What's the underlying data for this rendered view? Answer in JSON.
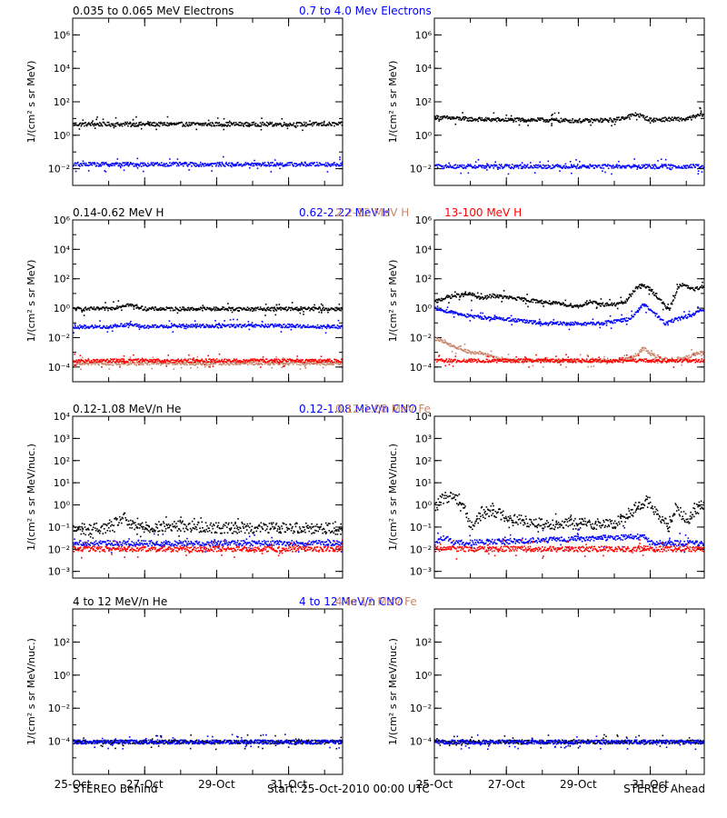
{
  "chart_data": [
    {
      "type": "scatter",
      "row": 0,
      "col": 0,
      "title_series": [
        "0.035 to 0.065 MeV Electrons",
        "0.7 to 4.0 Mev Electrons"
      ],
      "ylabel": "1/(cm² s sr MeV)",
      "yscale": "log",
      "ylim": [
        0.001,
        10000000
      ],
      "yticks": [
        {
          "v": 0.01,
          "label": "10⁻²"
        },
        {
          "v": 1,
          "label": "10⁰"
        },
        {
          "v": 100,
          "label": "10²"
        },
        {
          "v": 10000,
          "label": "10⁴"
        },
        {
          "v": 1000000,
          "label": "10⁶"
        }
      ],
      "xlim": [
        "2010-10-25",
        "2010-11-01T12:00"
      ],
      "series": [
        {
          "name": "0.035 to 0.065 MeV Electrons",
          "color": "#000000",
          "x": [
            0,
            1,
            2,
            3,
            4,
            5,
            6,
            7
          ],
          "values": [
            5,
            5,
            5,
            5,
            5,
            5,
            5,
            5
          ]
        },
        {
          "name": "0.7 to 4.0 Mev Electrons",
          "color": "#0000ff",
          "x": [
            0,
            1,
            2,
            3,
            4,
            5,
            6,
            7
          ],
          "values": [
            0.02,
            0.02,
            0.02,
            0.02,
            0.02,
            0.02,
            0.02,
            0.02
          ]
        }
      ]
    },
    {
      "type": "scatter",
      "row": 0,
      "col": 1,
      "title_series": [],
      "ylabel": "1/(cm² s sr MeV)",
      "yscale": "log",
      "ylim": [
        0.001,
        10000000
      ],
      "yticks": [
        {
          "v": 0.01,
          "label": "10⁻²"
        },
        {
          "v": 1,
          "label": "10⁰"
        },
        {
          "v": 100,
          "label": "10²"
        },
        {
          "v": 10000,
          "label": "10⁴"
        },
        {
          "v": 1000000,
          "label": "10⁶"
        }
      ],
      "xlim": [
        "2010-10-25",
        "2010-11-01T12:00"
      ],
      "series": [
        {
          "name": "0.035 to 0.065 MeV Electrons",
          "color": "#000000",
          "x": [
            0,
            1,
            2,
            3,
            4,
            5,
            5.6,
            6,
            6.5,
            7,
            7.5
          ],
          "values": [
            13,
            10,
            9,
            9,
            8,
            9,
            20,
            9,
            10,
            10,
            22
          ]
        },
        {
          "name": "0.7 to 4.0 Mev Electrons",
          "color": "#0000ff",
          "x": [
            0,
            7.5
          ],
          "values": [
            0.015,
            0.015
          ]
        }
      ]
    },
    {
      "type": "scatter",
      "row": 1,
      "col": 0,
      "title_series": [
        "0.14-0.62 MeV H",
        "0.62-2.22 MeV H",
        "2.2-12 MeV H",
        "13-100 MeV H"
      ],
      "ylabel": "1/(cm² s sr MeV)",
      "yscale": "log",
      "ylim": [
        1e-05,
        1000000
      ],
      "yticks": [
        {
          "v": 0.0001,
          "label": "10⁻⁴"
        },
        {
          "v": 0.01,
          "label": "10⁻²"
        },
        {
          "v": 1,
          "label": "10⁰"
        },
        {
          "v": 100,
          "label": "10²"
        },
        {
          "v": 10000,
          "label": "10⁴"
        },
        {
          "v": 1000000,
          "label": "10⁶"
        }
      ],
      "xlim": [
        "2010-10-25",
        "2010-11-01T12:00"
      ],
      "series": [
        {
          "name": "0.14-0.62 MeV H",
          "color": "#000000",
          "x": [
            0,
            1,
            1.5,
            2,
            3,
            4,
            5,
            6,
            7,
            7.5
          ],
          "values": [
            1,
            1,
            2,
            1,
            1,
            1,
            1,
            1,
            1,
            1
          ]
        },
        {
          "name": "0.62-2.22 MeV H",
          "color": "#0000ff",
          "x": [
            0,
            1,
            1.5,
            2,
            3,
            4,
            5,
            6,
            7,
            7.5
          ],
          "values": [
            0.06,
            0.06,
            0.09,
            0.06,
            0.07,
            0.07,
            0.07,
            0.07,
            0.06,
            0.06
          ]
        },
        {
          "name": "2.2-12 MeV H",
          "color": "#c8866b",
          "x": [
            0,
            7.5
          ],
          "values": [
            0.0002,
            0.0002
          ]
        },
        {
          "name": "13-100 MeV H",
          "color": "#ff0000",
          "x": [
            0,
            7.5
          ],
          "values": [
            0.0003,
            0.0003
          ]
        }
      ]
    },
    {
      "type": "scatter",
      "row": 1,
      "col": 1,
      "title_series": [],
      "ylabel": "1/(cm² s sr MeV)",
      "yscale": "log",
      "ylim": [
        1e-05,
        1000000
      ],
      "yticks": [
        {
          "v": 0.0001,
          "label": "10⁻⁴"
        },
        {
          "v": 0.01,
          "label": "10⁻²"
        },
        {
          "v": 1,
          "label": "10⁰"
        },
        {
          "v": 100,
          "label": "10²"
        },
        {
          "v": 10000,
          "label": "10⁴"
        },
        {
          "v": 1000000,
          "label": "10⁶"
        }
      ],
      "xlim": [
        "2010-10-25",
        "2010-11-01T12:00"
      ],
      "series": [
        {
          "name": "0.14-0.62 MeV H",
          "color": "#000000",
          "x": [
            0,
            0.3,
            0.6,
            1,
            1.3,
            1.6,
            2,
            3,
            4,
            4.3,
            4.6,
            5,
            5.3,
            5.6,
            5.8,
            6.0,
            6.3,
            6.5,
            6.8,
            7.2,
            7.5
          ],
          "values": [
            3,
            6,
            8,
            10,
            5,
            8,
            6,
            3,
            1.5,
            3,
            2,
            2,
            3,
            30,
            40,
            20,
            3,
            0.8,
            50,
            20,
            40
          ]
        },
        {
          "name": "0.62-2.22 MeV H",
          "color": "#0000ff",
          "x": [
            0,
            0.5,
            1,
            2,
            3,
            4,
            4.6,
            5,
            5.4,
            5.8,
            6.1,
            6.4,
            6.7,
            7,
            7.5
          ],
          "values": [
            1,
            0.6,
            0.3,
            0.2,
            0.1,
            0.1,
            0.1,
            0.15,
            0.2,
            2,
            0.5,
            0.1,
            0.2,
            0.3,
            0.9
          ]
        },
        {
          "name": "2.2-12 MeV H",
          "color": "#c8866b",
          "x": [
            0,
            0.3,
            0.7,
            1,
            1.3,
            1.6,
            2.0,
            5.0,
            5.5,
            5.8,
            6.0,
            6.5,
            7.0,
            7.3,
            7.5
          ],
          "values": [
            0.01,
            0.005,
            0.002,
            0.001,
            0.001,
            0.0005,
            0.0003,
            0.0003,
            0.0005,
            0.002,
            0.0008,
            0.0003,
            0.0005,
            0.001,
            0.001
          ]
        },
        {
          "name": "13-100 MeV H",
          "color": "#ff0000",
          "x": [
            0,
            7.5
          ],
          "values": [
            0.0003,
            0.0003
          ]
        }
      ]
    },
    {
      "type": "scatter",
      "row": 2,
      "col": 0,
      "title_series": [
        "0.12-1.08 MeV/n He",
        "0.12-1.08 MeV/n CNO",
        "0.12-1.08 MeV Fe"
      ],
      "ylabel": "1/(cm² s sr MeV/nuc.)",
      "yscale": "log",
      "ylim": [
        0.0005,
        10000
      ],
      "yticks": [
        {
          "v": 0.001,
          "label": "10⁻³"
        },
        {
          "v": 0.01,
          "label": "10⁻²"
        },
        {
          "v": 0.1,
          "label": "10⁻¹"
        },
        {
          "v": 1,
          "label": "10⁰"
        },
        {
          "v": 10,
          "label": "10¹"
        },
        {
          "v": 100,
          "label": "10²"
        },
        {
          "v": 1000,
          "label": "10³"
        },
        {
          "v": 10000,
          "label": "10⁴"
        }
      ],
      "xlim": [
        "2010-10-25",
        "2010-11-01T12:00"
      ],
      "series": [
        {
          "name": "0.12-1.08 MeV/n He",
          "color": "#000000",
          "x": [
            0,
            1,
            1.4,
            1.6,
            2,
            3,
            4,
            5,
            6,
            7,
            7.5
          ],
          "values": [
            0.08,
            0.1,
            0.3,
            0.12,
            0.1,
            0.12,
            0.1,
            0.1,
            0.1,
            0.1,
            0.08
          ]
        },
        {
          "name": "0.12-1.08 MeV/n CNO",
          "color": "#0000ff",
          "x": [
            0,
            7.5
          ],
          "values": [
            0.02,
            0.02
          ]
        },
        {
          "name": "0.12-1.08 MeV Fe",
          "color": "#ff0000",
          "x": [
            0,
            7.5
          ],
          "values": [
            0.011,
            0.011
          ]
        }
      ]
    },
    {
      "type": "scatter",
      "row": 2,
      "col": 1,
      "title_series": [],
      "ylabel": "1/(cm² s sr MeV/nuc.)",
      "yscale": "log",
      "ylim": [
        0.0005,
        10000
      ],
      "yticks": [
        {
          "v": 0.001,
          "label": "10⁻³"
        },
        {
          "v": 0.01,
          "label": "10⁻²"
        },
        {
          "v": 0.1,
          "label": "10⁻¹"
        },
        {
          "v": 1,
          "label": "10⁰"
        },
        {
          "v": 10,
          "label": "10¹"
        },
        {
          "v": 100,
          "label": "10²"
        },
        {
          "v": 1000,
          "label": "10³"
        },
        {
          "v": 10000,
          "label": "10⁴"
        }
      ],
      "xlim": [
        "2010-10-25",
        "2010-11-01T12:00"
      ],
      "series": [
        {
          "name": "0.12-1.08 MeV/n He",
          "color": "#000000",
          "x": [
            0,
            0.2,
            0.5,
            0.8,
            1.0,
            1.3,
            1.6,
            2.0,
            2.5,
            3.0,
            4.0,
            5.0,
            5.7,
            5.9,
            6.2,
            6.5,
            6.7,
            7.0,
            7.3,
            7.5
          ],
          "values": [
            0.8,
            2,
            3,
            1,
            0.1,
            0.5,
            0.6,
            0.3,
            0.2,
            0.15,
            0.15,
            0.15,
            1,
            2,
            0.3,
            0.12,
            1,
            0.2,
            0.8,
            1.5
          ]
        },
        {
          "name": "0.12-1.08 MeV/n CNO",
          "color": "#0000ff",
          "x": [
            0,
            0.3,
            0.5,
            5.8,
            6.0,
            7.5
          ],
          "values": [
            0.02,
            0.04,
            0.02,
            0.04,
            0.02,
            0.02
          ]
        },
        {
          "name": "0.12-1.08 MeV Fe",
          "color": "#ff0000",
          "x": [
            0,
            7.5
          ],
          "values": [
            0.011,
            0.011
          ]
        }
      ]
    },
    {
      "type": "scatter",
      "row": 3,
      "col": 0,
      "title_series": [
        "4 to 12 MeV/n He",
        "4 to 12 MeV/n CNO",
        "4 to 12 MeV Fe"
      ],
      "ylabel": "1/(cm² s sr MeV/nuc.)",
      "yscale": "log",
      "ylim": [
        1e-06,
        10000
      ],
      "yticks": [
        {
          "v": 0.0001,
          "label": "10⁻⁴"
        },
        {
          "v": 0.01,
          "label": "10⁻²"
        },
        {
          "v": 1,
          "label": "10⁰"
        },
        {
          "v": 100,
          "label": "10²"
        }
      ],
      "xlim": [
        "2010-10-25",
        "2010-11-01T12:00"
      ],
      "series": [
        {
          "name": "4 to 12 MeV/n He",
          "color": "#000000",
          "x": [
            0,
            7.5
          ],
          "values": [
            0.0001,
            0.0001
          ]
        },
        {
          "name": "4 to 12 MeV/n CNO",
          "color": "#0000ff",
          "x": [
            0,
            7.5
          ],
          "values": [
            0.0001,
            0.0001
          ]
        }
      ]
    },
    {
      "type": "scatter",
      "row": 3,
      "col": 1,
      "title_series": [],
      "ylabel": "1/(cm² s sr MeV/nuc.)",
      "yscale": "log",
      "ylim": [
        1e-06,
        10000
      ],
      "yticks": [
        {
          "v": 0.0001,
          "label": "10⁻⁴"
        },
        {
          "v": 0.01,
          "label": "10⁻²"
        },
        {
          "v": 1,
          "label": "10⁰"
        },
        {
          "v": 100,
          "label": "10²"
        }
      ],
      "xlim": [
        "2010-10-25",
        "2010-11-01T12:00"
      ],
      "series": [
        {
          "name": "4 to 12 MeV/n He",
          "color": "#000000",
          "x": [
            0,
            7.5
          ],
          "values": [
            0.0001,
            0.0001
          ]
        },
        {
          "name": "4 to 12 MeV/n CNO",
          "color": "#0000ff",
          "x": [
            0,
            7.5
          ],
          "values": [
            0.0001,
            0.0001
          ]
        }
      ]
    }
  ],
  "title_colors": [
    "#000000",
    "#0000ff",
    "#c8866b",
    "#ff0000"
  ],
  "xticks": [
    {
      "date": "2010-10-25",
      "label": "25-Oct"
    },
    {
      "date": "2010-10-27",
      "label": "27-Oct"
    },
    {
      "date": "2010-10-29",
      "label": "29-Oct"
    },
    {
      "date": "2010-10-31",
      "label": "31-Oct"
    }
  ],
  "footer": {
    "left": "STEREO Behind",
    "center": "Start: 25-Oct-2010 00:00 UTC",
    "right": "STEREO Ahead"
  }
}
